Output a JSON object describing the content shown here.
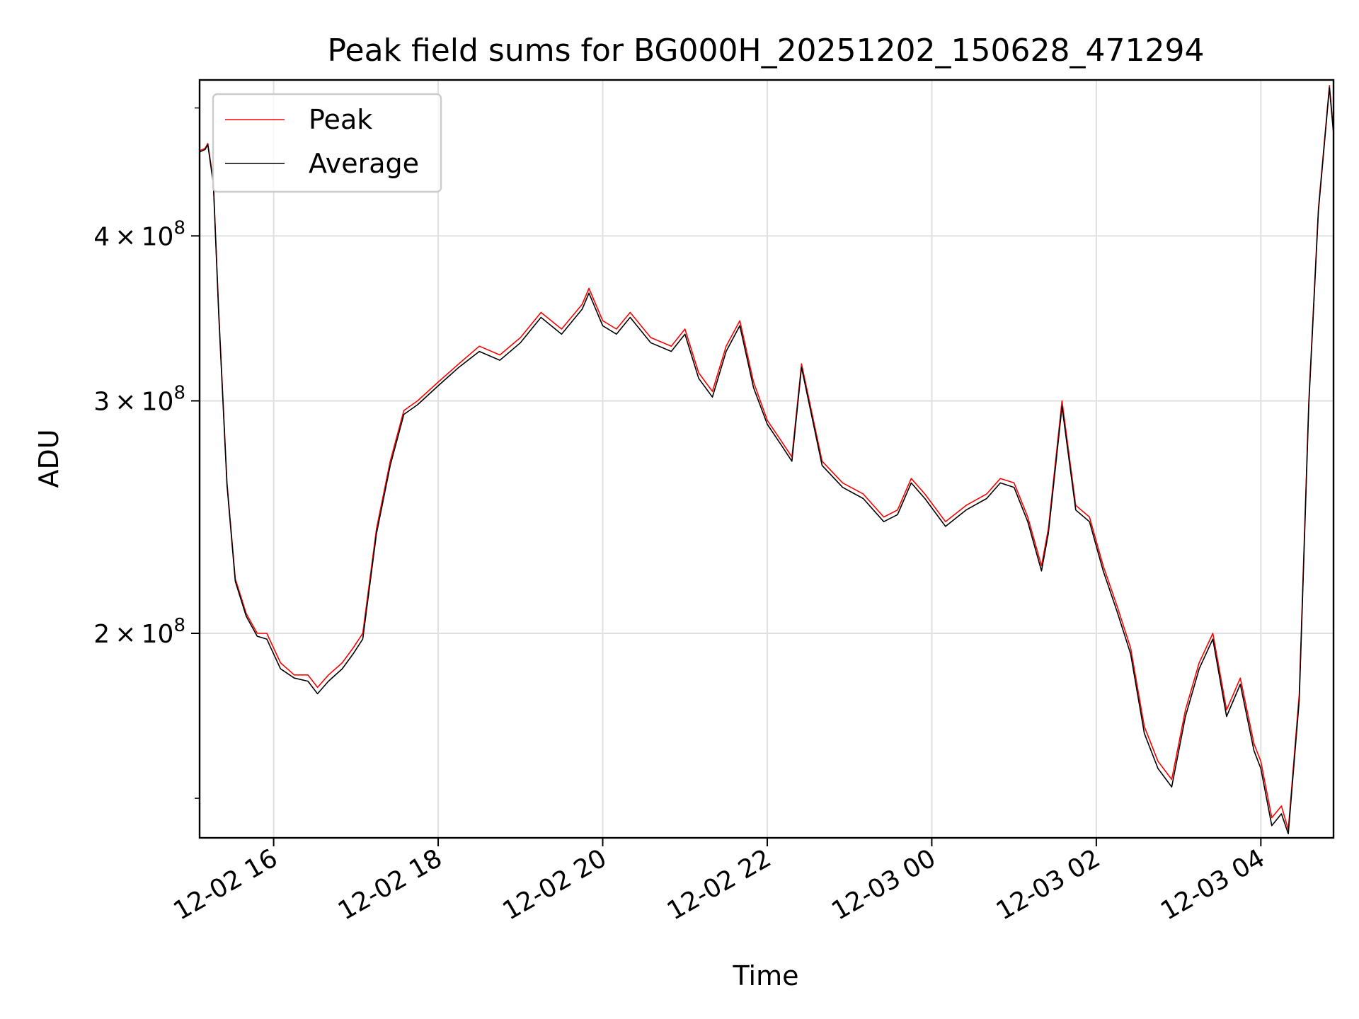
{
  "chart_data": {
    "type": "line",
    "title": "Peak field sums for BG000H_20251202_150628_471294",
    "xlabel": "Time",
    "ylabel": "ADU",
    "y_scale": "log",
    "ylim": [
      140000000,
      525000000
    ],
    "xlim": [
      "2025-12-02 15:06",
      "2025-12-03 04:53"
    ],
    "grid": true,
    "legend_position": "top-left",
    "x_ticks": [
      "2025-12-02 16:00",
      "2025-12-02 18:00",
      "2025-12-02 20:00",
      "2025-12-02 22:00",
      "2025-12-03 00:00",
      "2025-12-03 02:00",
      "2025-12-03 04:00"
    ],
    "x_tick_labels": [
      "12-02 16",
      "12-02 18",
      "12-02 20",
      "12-02 22",
      "12-03 00",
      "12-03 02",
      "12-03 04"
    ],
    "y_ticks": [
      200000000,
      300000000,
      400000000
    ],
    "y_tick_labels": [
      {
        "mantissa": "2",
        "times": "×",
        "base": "10",
        "exp": "8"
      },
      {
        "mantissa": "3",
        "times": "×",
        "base": "10",
        "exp": "8"
      },
      {
        "mantissa": "4",
        "times": "×",
        "base": "10",
        "exp": "8"
      }
    ],
    "colors": {
      "Peak": "#ff0000",
      "Average": "#000000",
      "grid": "#e0e0e0"
    },
    "x": [
      "2025-12-02 15:06",
      "2025-12-02 15:10",
      "2025-12-02 15:12",
      "2025-12-02 15:16",
      "2025-12-02 15:20",
      "2025-12-02 15:26",
      "2025-12-02 15:32",
      "2025-12-02 15:40",
      "2025-12-02 15:48",
      "2025-12-02 15:55",
      "2025-12-02 16:05",
      "2025-12-02 16:15",
      "2025-12-02 16:25",
      "2025-12-02 16:32",
      "2025-12-02 16:40",
      "2025-12-02 16:50",
      "2025-12-02 16:58",
      "2025-12-02 17:05",
      "2025-12-02 17:15",
      "2025-12-02 17:25",
      "2025-12-02 17:35",
      "2025-12-02 17:45",
      "2025-12-02 18:00",
      "2025-12-02 18:15",
      "2025-12-02 18:30",
      "2025-12-02 18:45",
      "2025-12-02 19:00",
      "2025-12-02 19:15",
      "2025-12-02 19:30",
      "2025-12-02 19:45",
      "2025-12-02 19:50",
      "2025-12-02 20:00",
      "2025-12-02 20:10",
      "2025-12-02 20:20",
      "2025-12-02 20:35",
      "2025-12-02 20:50",
      "2025-12-02 21:00",
      "2025-12-02 21:10",
      "2025-12-02 21:20",
      "2025-12-02 21:30",
      "2025-12-02 21:40",
      "2025-12-02 21:50",
      "2025-12-02 22:00",
      "2025-12-02 22:10",
      "2025-12-02 22:18",
      "2025-12-02 22:25",
      "2025-12-02 22:40",
      "2025-12-02 22:55",
      "2025-12-02 23:10",
      "2025-12-02 23:25",
      "2025-12-02 23:35",
      "2025-12-02 23:45",
      "2025-12-02 23:55",
      "2025-12-03 00:10",
      "2025-12-03 00:25",
      "2025-12-03 00:40",
      "2025-12-03 00:50",
      "2025-12-03 01:00",
      "2025-12-03 01:10",
      "2025-12-03 01:20",
      "2025-12-03 01:25",
      "2025-12-03 01:35",
      "2025-12-03 01:45",
      "2025-12-03 01:55",
      "2025-12-03 02:05",
      "2025-12-03 02:15",
      "2025-12-03 02:25",
      "2025-12-03 02:35",
      "2025-12-03 02:45",
      "2025-12-03 02:55",
      "2025-12-03 03:05",
      "2025-12-03 03:15",
      "2025-12-03 03:25",
      "2025-12-03 03:35",
      "2025-12-03 03:45",
      "2025-12-03 03:55",
      "2025-12-03 04:00",
      "2025-12-03 04:08",
      "2025-12-03 04:15",
      "2025-12-03 04:20",
      "2025-12-03 04:28",
      "2025-12-03 04:35",
      "2025-12-03 04:42",
      "2025-12-03 04:50",
      "2025-12-03 04:53"
    ],
    "series": [
      {
        "name": "Peak",
        "values": [
          464000000,
          466000000,
          470000000,
          440000000,
          350000000,
          260000000,
          220000000,
          207000000,
          200000000,
          200000000,
          190000000,
          186000000,
          186000000,
          182000000,
          186000000,
          190000000,
          195000000,
          200000000,
          240000000,
          270000000,
          295000000,
          300000000,
          310000000,
          320000000,
          330000000,
          325000000,
          335000000,
          350000000,
          340000000,
          355000000,
          365000000,
          345000000,
          340000000,
          350000000,
          335000000,
          330000000,
          340000000,
          315000000,
          305000000,
          330000000,
          345000000,
          310000000,
          290000000,
          280000000,
          272000000,
          320000000,
          270000000,
          260000000,
          255000000,
          245000000,
          248000000,
          262000000,
          255000000,
          243000000,
          250000000,
          255000000,
          262000000,
          260000000,
          245000000,
          225000000,
          240000000,
          300000000,
          250000000,
          245000000,
          225000000,
          210000000,
          195000000,
          170000000,
          160000000,
          155000000,
          175000000,
          190000000,
          200000000,
          175000000,
          185000000,
          165000000,
          160000000,
          145000000,
          148000000,
          142000000,
          180000000,
          300000000,
          420000000,
          520000000,
          480000000
        ]
      },
      {
        "name": "Average",
        "values": [
          463000000,
          465000000,
          469000000,
          438000000,
          348000000,
          259000000,
          219000000,
          206000000,
          199000000,
          198000000,
          188000000,
          185000000,
          184000000,
          180000000,
          184000000,
          188000000,
          193000000,
          198000000,
          238000000,
          268000000,
          293000000,
          298000000,
          308000000,
          318000000,
          327000000,
          322000000,
          332000000,
          347000000,
          337000000,
          352000000,
          362000000,
          342000000,
          337000000,
          347000000,
          332000000,
          327000000,
          337000000,
          312000000,
          302000000,
          327000000,
          342000000,
          307000000,
          288000000,
          278000000,
          270000000,
          318000000,
          268000000,
          258000000,
          253000000,
          243000000,
          246000000,
          260000000,
          253000000,
          241000000,
          248000000,
          253000000,
          260000000,
          258000000,
          243000000,
          223000000,
          238000000,
          297000000,
          248000000,
          243000000,
          223000000,
          208000000,
          193000000,
          168000000,
          158000000,
          153000000,
          173000000,
          188000000,
          198000000,
          173000000,
          183000000,
          163000000,
          158000000,
          143000000,
          146000000,
          141000000,
          178000000,
          298000000,
          418000000,
          518000000,
          478000000
        ]
      }
    ]
  }
}
